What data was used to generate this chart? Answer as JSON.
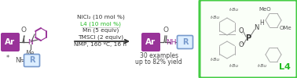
{
  "bg_color": "#ffffff",
  "ar_box_color": "#993399",
  "r_box_color_fill": "#ddeeff",
  "r_box_color_edge": "#7799cc",
  "conditions_lines": [
    "NiCl₂ (10 mol %)",
    "L4 (10 mol %)",
    "Mn (5 equiv)",
    "TMSCl (2 equiv)",
    "NMP, 160 ºC, 16 h"
  ],
  "l4_col": "#22bb22",
  "cond_col": "#333333",
  "result_lines": [
    "30 examples",
    "up to 82% yield"
  ],
  "green_edge": "#44cc44",
  "figsize": [
    3.78,
    1.0
  ],
  "dpi": 100
}
